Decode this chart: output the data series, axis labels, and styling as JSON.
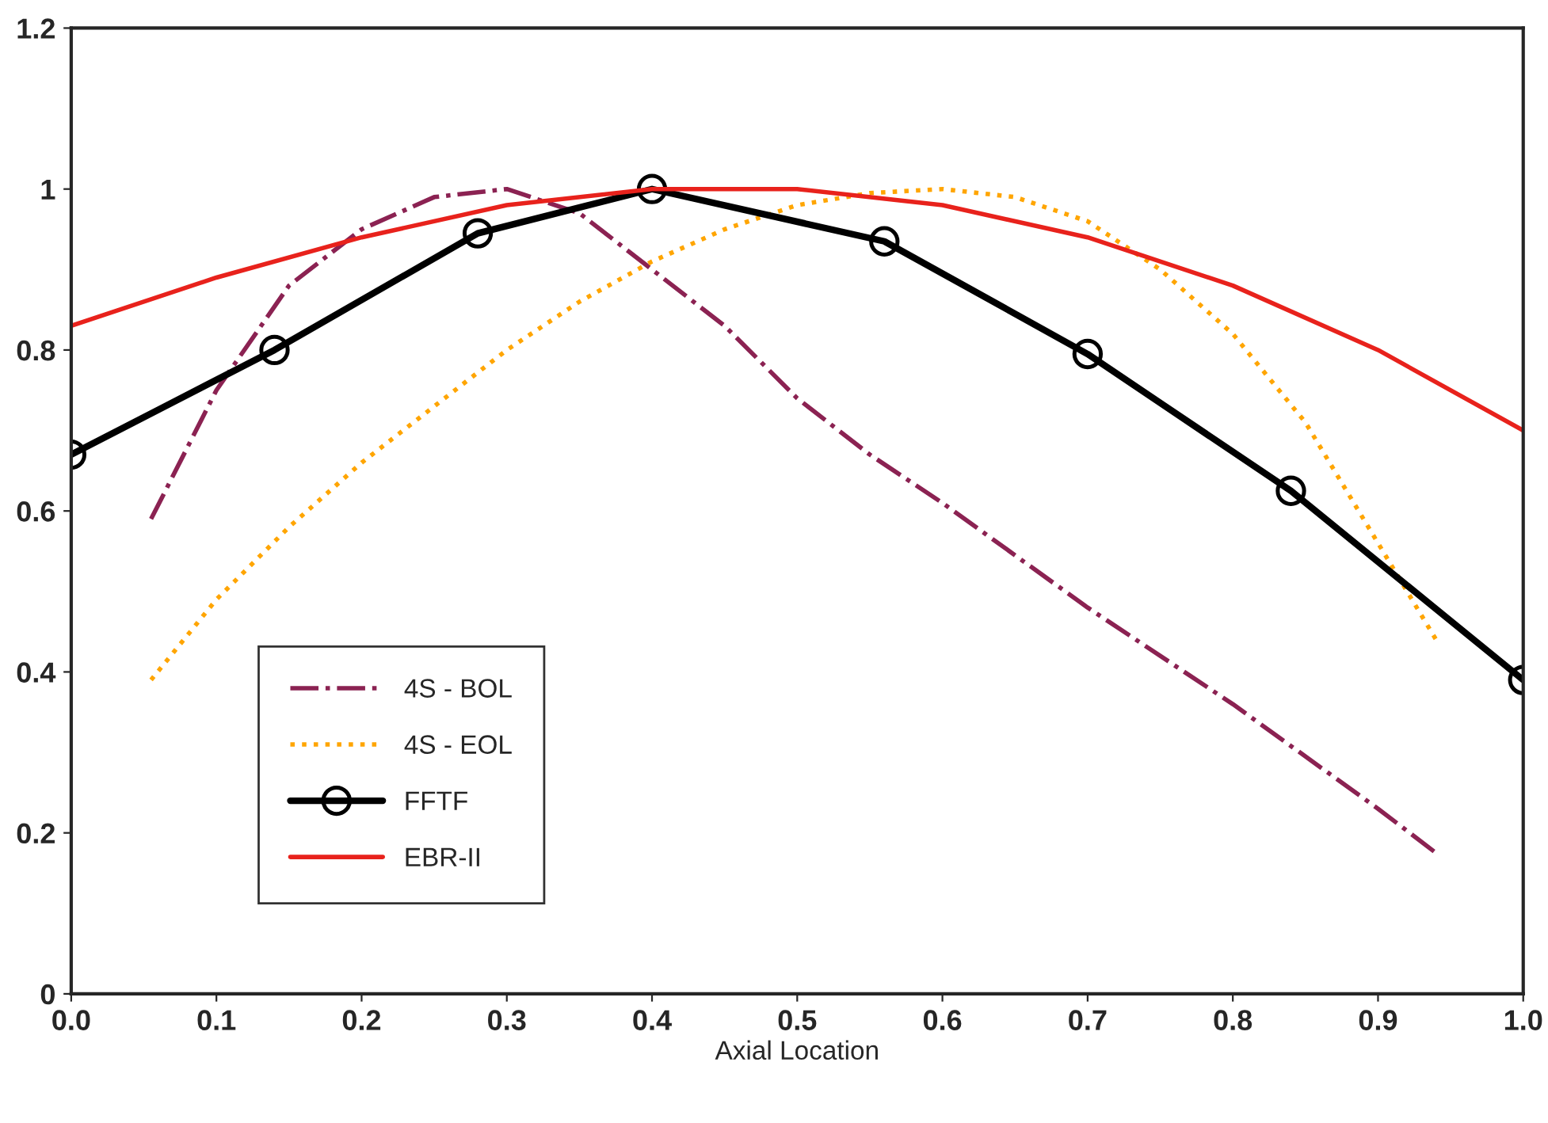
{
  "chart_data": {
    "type": "line",
    "xlabel": "Axial Location",
    "xlim": [
      0,
      1
    ],
    "ylim": [
      0,
      1.2
    ],
    "xticks": [
      {
        "value": 0,
        "label": "0.0"
      },
      0.1,
      0.2,
      0.3,
      0.4,
      0.5,
      0.6,
      0.7,
      0.8,
      0.9,
      {
        "value": 1,
        "label": "1.0"
      }
    ],
    "yticks": [
      0,
      0.2,
      0.4,
      0.6,
      0.8,
      1,
      1.2
    ],
    "grid": false,
    "legend": "bottom left",
    "series": [
      {
        "name": "4S - BOL",
        "color": "#8b2252",
        "line_style": "dashdot",
        "marker": "none",
        "x": [
          0.055,
          0.1,
          0.15,
          0.2,
          0.25,
          0.3,
          0.35,
          0.4,
          0.45,
          0.5,
          0.55,
          0.6,
          0.7,
          0.8,
          0.9,
          0.94
        ],
        "values": [
          0.59,
          0.75,
          0.88,
          0.95,
          0.99,
          1.0,
          0.97,
          0.9,
          0.83,
          0.74,
          0.67,
          0.61,
          0.48,
          0.36,
          0.23,
          0.175
        ]
      },
      {
        "name": "4S - EOL",
        "color": "#ffa500",
        "line_style": "dotted",
        "marker": "none",
        "x": [
          0.055,
          0.1,
          0.15,
          0.2,
          0.25,
          0.3,
          0.35,
          0.4,
          0.45,
          0.5,
          0.55,
          0.6,
          0.65,
          0.7,
          0.75,
          0.8,
          0.85,
          0.9,
          0.94
        ],
        "values": [
          0.39,
          0.49,
          0.58,
          0.66,
          0.73,
          0.8,
          0.86,
          0.91,
          0.95,
          0.98,
          0.995,
          1.0,
          0.99,
          0.96,
          0.9,
          0.82,
          0.71,
          0.56,
          0.44
        ]
      },
      {
        "name": "FFTF",
        "color": "#000000",
        "line_style": "solid",
        "marker": "circle",
        "x": [
          0,
          0.14,
          0.28,
          0.4,
          0.56,
          0.7,
          0.84,
          1.0
        ],
        "values": [
          0.67,
          0.8,
          0.945,
          1.0,
          0.935,
          0.795,
          0.625,
          0.39
        ]
      },
      {
        "name": "EBR-II",
        "color": "#e8221c",
        "line_style": "solid",
        "marker": "none",
        "x": [
          0,
          0.1,
          0.2,
          0.3,
          0.4,
          0.5,
          0.6,
          0.7,
          0.8,
          0.9,
          1.0
        ],
        "values": [
          0.83,
          0.89,
          0.94,
          0.98,
          1.0,
          1.0,
          0.98,
          0.94,
          0.88,
          0.8,
          0.7
        ]
      }
    ]
  }
}
